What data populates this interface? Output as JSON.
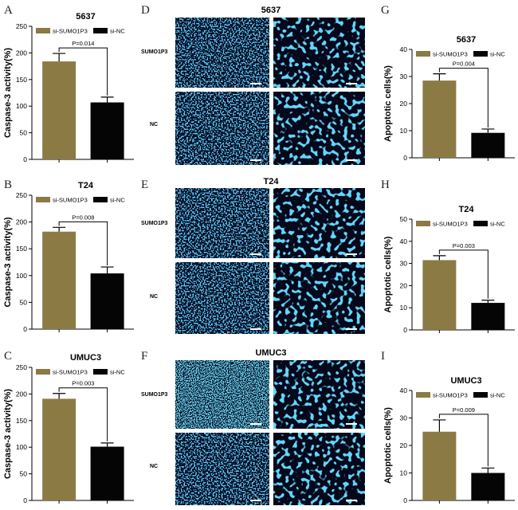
{
  "colors": {
    "si_sumo": "#8c7a45",
    "si_nc": "#050505",
    "micro_bg": "#05071a",
    "nuclei_a": "#1f8fe0",
    "nuclei_b": "#29c6f2",
    "axis": "#000000"
  },
  "legend": {
    "a": "si-SUMO1P3",
    "b": "si-NC"
  },
  "micro_row_labels": [
    "SUMO1P3",
    "NC"
  ],
  "panel_letters": [
    "A",
    "B",
    "C",
    "D",
    "E",
    "F",
    "G",
    "H",
    "I"
  ],
  "micro_titles": [
    "5637",
    "T24",
    "UMUC3"
  ],
  "chart_data": [
    {
      "panel": "A",
      "type": "bar",
      "title": "5637",
      "ylabel": "Caspase-3 activity(%)",
      "categories": [
        "si-SUMO1P3",
        "si-NC"
      ],
      "values": [
        184,
        107
      ],
      "errors": [
        15,
        10
      ],
      "ylim": [
        0,
        250
      ],
      "yticks": [
        0,
        50,
        100,
        150,
        200,
        250
      ],
      "pvalue": "P=0.014"
    },
    {
      "panel": "B",
      "type": "bar",
      "title": "T24",
      "ylabel": "Caspase-3 activity(%)",
      "categories": [
        "si-SUMO1P3",
        "si-NC"
      ],
      "values": [
        182,
        104
      ],
      "errors": [
        8,
        12
      ],
      "ylim": [
        0,
        250
      ],
      "yticks": [
        0,
        50,
        100,
        150,
        200,
        250
      ],
      "pvalue": "P=0.008"
    },
    {
      "panel": "C",
      "type": "bar",
      "title": "UMUC3",
      "ylabel": "Caspase-3 activity(%)",
      "categories": [
        "si-SUMO1P3",
        "si-NC"
      ],
      "values": [
        191,
        101
      ],
      "errors": [
        10,
        7
      ],
      "ylim": [
        0,
        250
      ],
      "yticks": [
        0,
        50,
        100,
        150,
        200,
        250
      ],
      "pvalue": "P=0.003"
    },
    {
      "panel": "G",
      "type": "bar",
      "title": "5637",
      "ylabel": "Apoptotic cells(%)",
      "categories": [
        "si-SUMO1P3",
        "si-NC"
      ],
      "values": [
        28.5,
        9.2
      ],
      "errors": [
        2.5,
        1.4
      ],
      "ylim": [
        0,
        40
      ],
      "yticks": [
        0,
        10,
        20,
        30,
        40
      ],
      "pvalue": "P=0.004"
    },
    {
      "panel": "H",
      "type": "bar",
      "title": "T24",
      "ylabel": "Apoptotic cells(%)",
      "categories": [
        "si-SUMO1P3",
        "si-NC"
      ],
      "values": [
        31.5,
        12.2
      ],
      "errors": [
        2.0,
        1.2
      ],
      "ylim": [
        0,
        50
      ],
      "yticks": [
        0,
        10,
        20,
        30,
        40,
        50
      ],
      "pvalue": "P=0.003"
    },
    {
      "panel": "I",
      "type": "bar",
      "title": "UMUC3",
      "ylabel": "Apoptotic cells(%)",
      "categories": [
        "si-SUMO1P3",
        "si-NC"
      ],
      "values": [
        25,
        10
      ],
      "errors": [
        4.3,
        1.8
      ],
      "ylim": [
        0,
        40
      ],
      "yticks": [
        0,
        10,
        20,
        30,
        40
      ],
      "pvalue": "P=0.009"
    }
  ]
}
